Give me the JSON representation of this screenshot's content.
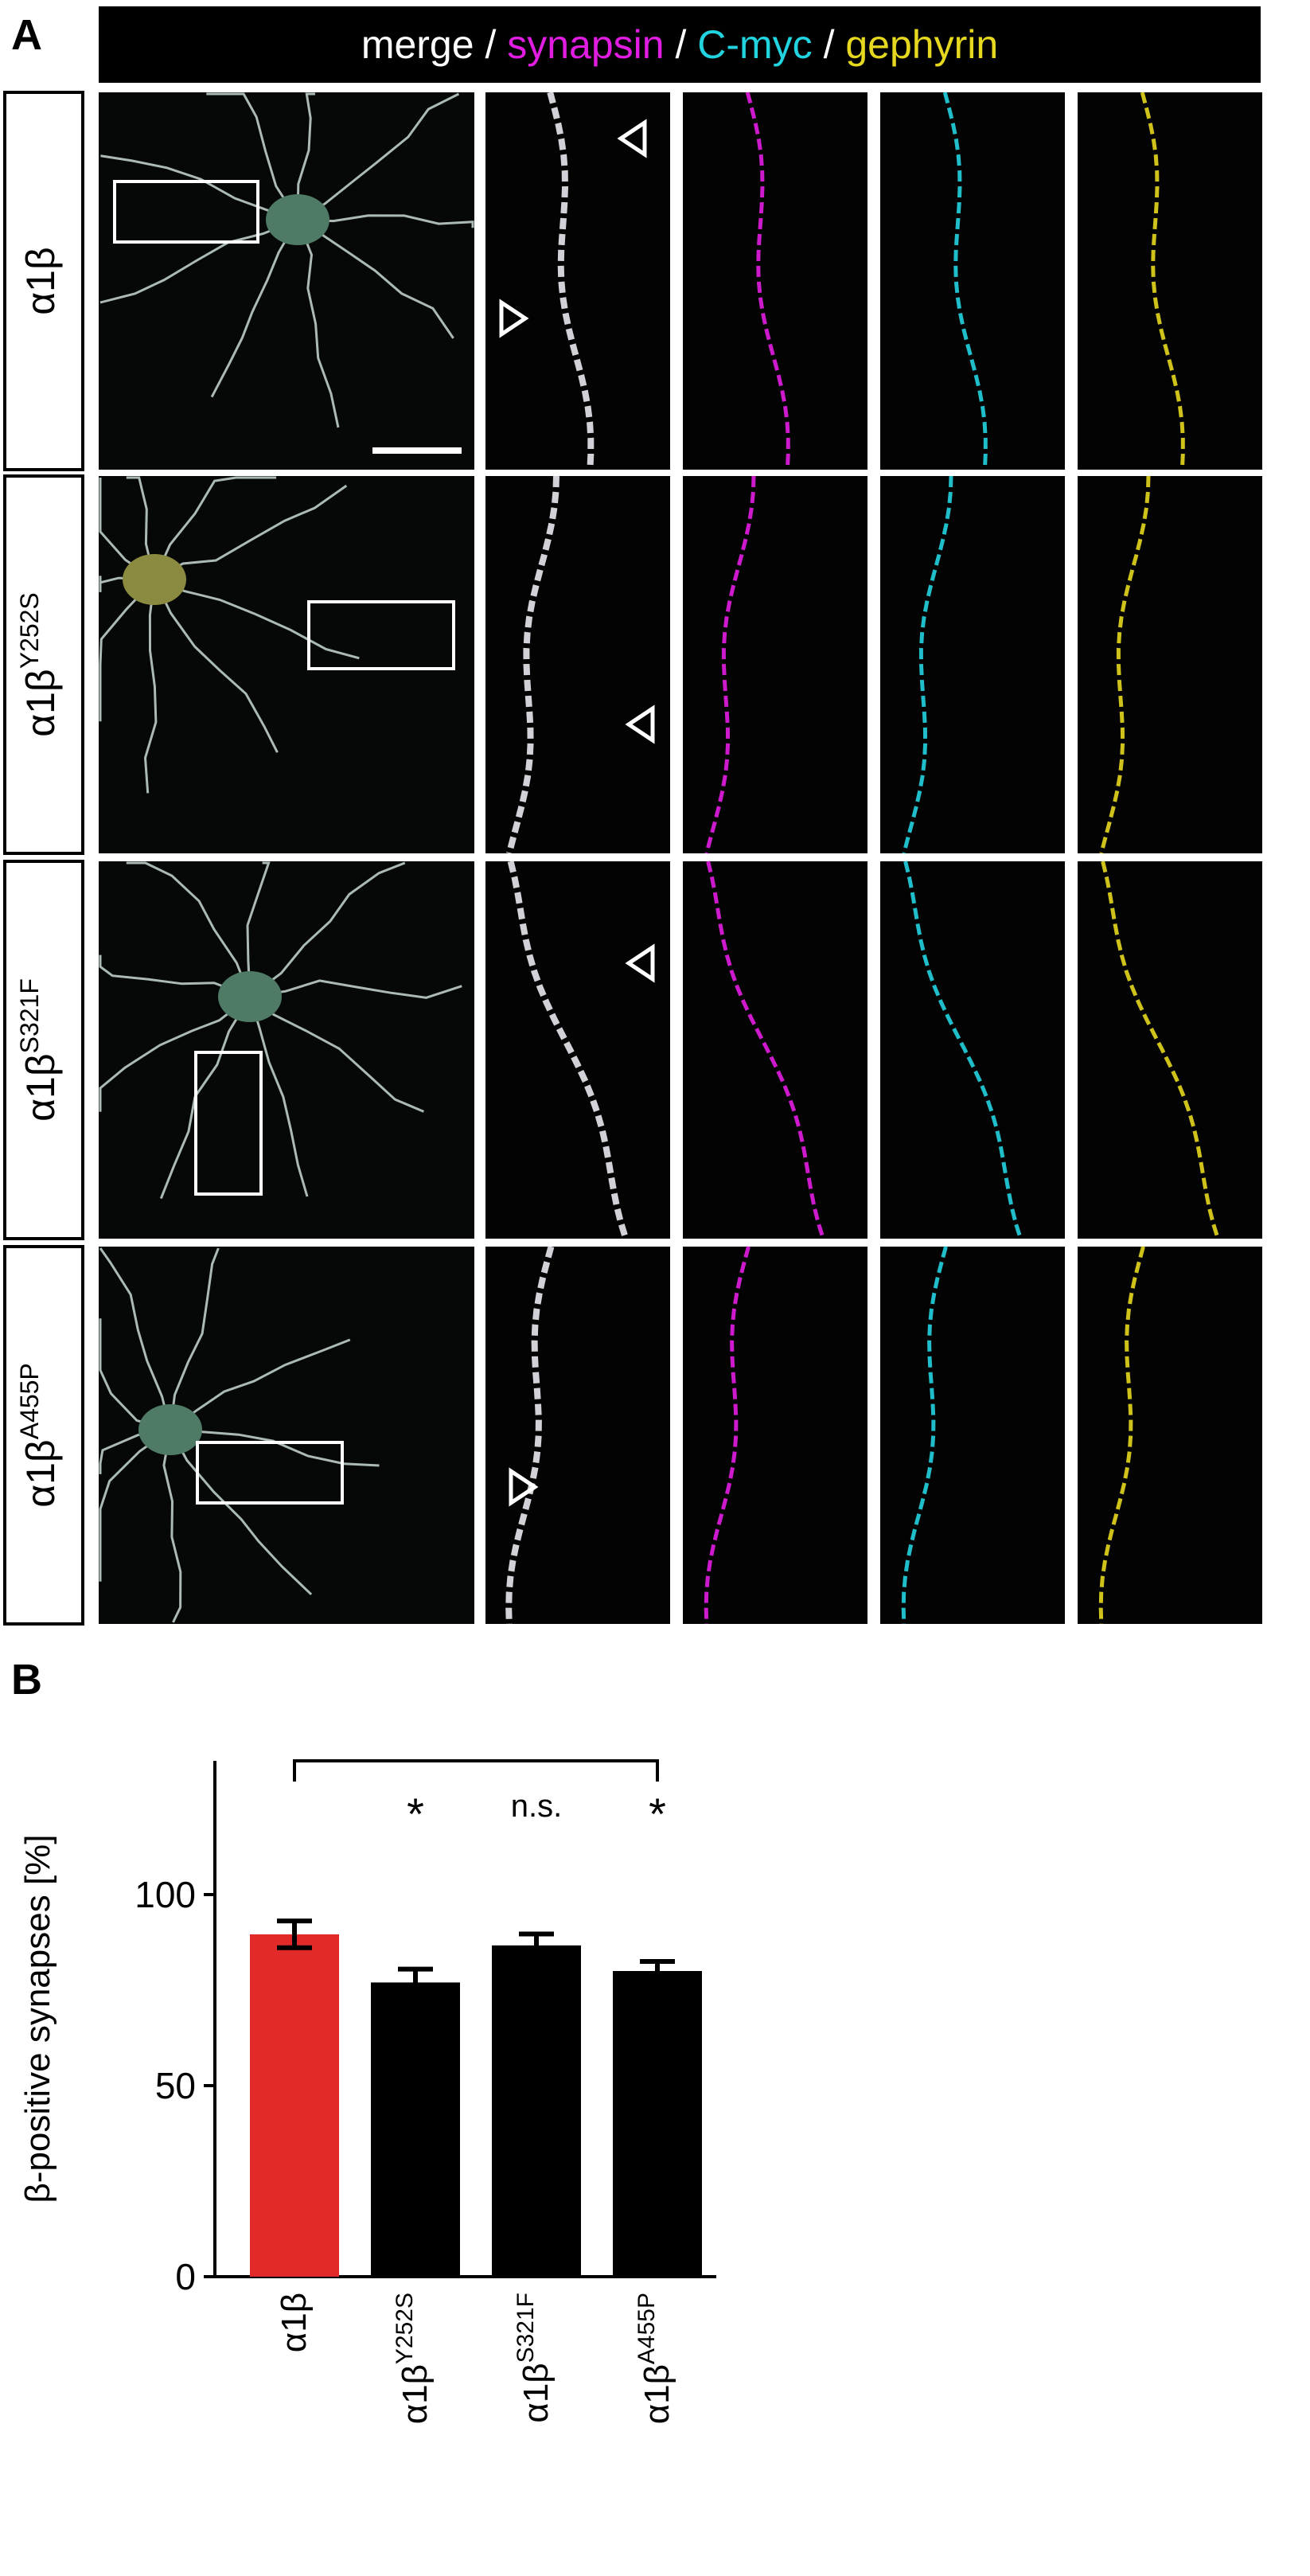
{
  "panel_a": {
    "label": "A",
    "header": [
      {
        "text": "merge / ",
        "color": "#ffffff"
      },
      {
        "text": "synapsin",
        "color": "#e21de2"
      },
      {
        "text": " / ",
        "color": "#ffffff"
      },
      {
        "text": "C-myc",
        "color": "#22d3e0"
      },
      {
        "text": " / ",
        "color": "#ffffff"
      },
      {
        "text": "gephyrin",
        "color": "#e6d81e"
      }
    ],
    "rows": [
      {
        "text": "α1β"
      },
      {
        "text": "α1β",
        "sup": "Y252S"
      },
      {
        "text": "α1β",
        "sup": "S321F"
      },
      {
        "text": "α1β",
        "sup": "A455P"
      }
    ]
  },
  "chart_data": {
    "type": "bar",
    "label": "B",
    "ylabel": "β-positive synapses [%]",
    "categories": [
      "α1β",
      "α1β",
      "α1β",
      "α1β"
    ],
    "category_superscripts": [
      null,
      "Y252S",
      "S321F",
      "A455P"
    ],
    "values": [
      89.6,
      77,
      86.7,
      80
    ],
    "errors": [
      3.5,
      3.5,
      3,
      2.5
    ],
    "colors": [
      "#e22a2a",
      "#000000",
      "#000000",
      "#000000"
    ],
    "significance": [
      null,
      "*",
      "n.s.",
      "*"
    ],
    "ylim": [
      0,
      135
    ],
    "yticks": [
      0,
      50,
      100
    ]
  }
}
